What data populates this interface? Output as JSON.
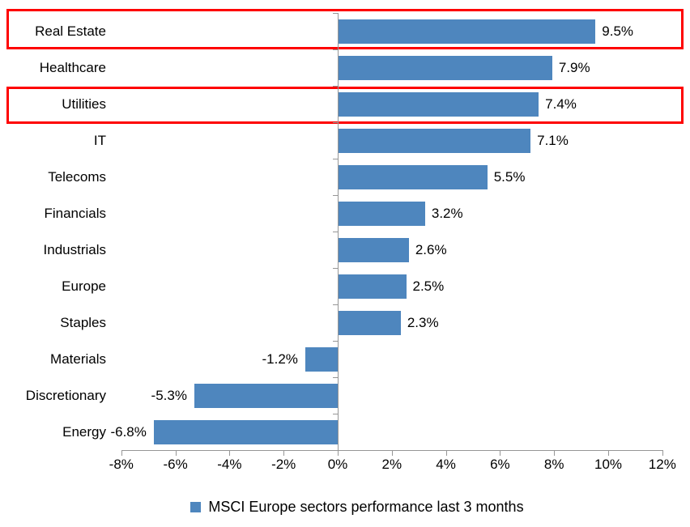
{
  "chart_data": {
    "type": "bar",
    "orientation": "horizontal",
    "title": "",
    "xlabel": "",
    "ylabel": "",
    "categories": [
      "Real Estate",
      "Healthcare",
      "Utilities",
      "IT",
      "Telecoms",
      "Financials",
      "Industrials",
      "Europe",
      "Staples",
      "Materials",
      "Discretionary",
      "Energy"
    ],
    "values": [
      9.5,
      7.9,
      7.4,
      7.1,
      5.5,
      3.2,
      2.6,
      2.5,
      2.3,
      -1.2,
      -5.3,
      -6.8
    ],
    "value_labels": [
      "9.5%",
      "7.9%",
      "7.4%",
      "7.1%",
      "5.5%",
      "3.2%",
      "2.6%",
      "2.5%",
      "2.3%",
      "-1.2%",
      "-5.3%",
      "-6.8%"
    ],
    "x_tick_values": [
      -8,
      -6,
      -4,
      -2,
      0,
      2,
      4,
      6,
      8,
      10,
      12
    ],
    "x_tick_labels": [
      "-8%",
      "-6%",
      "-4%",
      "-2%",
      "0%",
      "2%",
      "4%",
      "6%",
      "8%",
      "10%",
      "12%"
    ],
    "xlim": [
      -8,
      12
    ],
    "grid": "off",
    "legend": "MSCI Europe sectors performance last 3 months",
    "legend_position": "bottom-center",
    "bar_color": "#4e86be",
    "axis_color": "#969696",
    "text_color": "#000000",
    "highlight_color": "#fe0000",
    "highlighted_categories": [
      "Real Estate",
      "Utilities"
    ]
  }
}
